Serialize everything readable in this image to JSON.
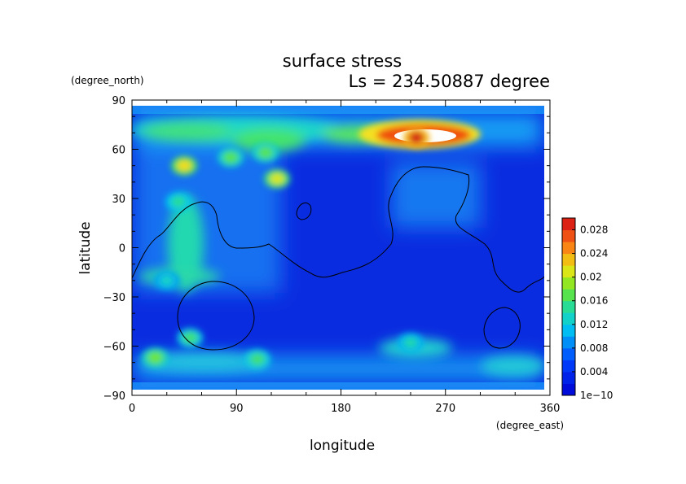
{
  "chart_data": {
    "type": "heatmap",
    "title": "surface stress",
    "subtitle": "Ls = 234.50887 degree",
    "xlabel": "longitude",
    "ylabel": "latitude",
    "x_units": "(degree_east)",
    "y_units": "(degree_north)",
    "xlim": [
      0,
      360
    ],
    "ylim": [
      -90,
      90
    ],
    "x_ticks": [
      "0",
      "90",
      "180",
      "270",
      "360"
    ],
    "y_ticks": [
      "90",
      "60",
      "30",
      "0",
      "−30",
      "−60",
      "−90"
    ],
    "x_tick_values": [
      0,
      90,
      180,
      270,
      360
    ],
    "y_tick_values": [
      90,
      60,
      30,
      0,
      -30,
      -60,
      -90
    ],
    "colorbar": {
      "min": 0,
      "max": 0.03,
      "tick_labels": [
        "1e−10",
        "0.004",
        "0.008",
        "0.012",
        "0.016",
        "0.02",
        "0.024",
        "0.028"
      ],
      "tick_values": [
        0,
        0.004,
        0.008,
        0.012,
        0.016,
        0.02,
        0.024,
        0.028
      ]
    },
    "grid": false,
    "hotspots": [
      {
        "lon": 245,
        "lat": 67,
        "value": 0.031
      },
      {
        "lon": 45,
        "lat": 50,
        "value": 0.022
      },
      {
        "lon": 125,
        "lat": 42,
        "value": 0.021
      },
      {
        "lon": 85,
        "lat": 55,
        "value": 0.017
      },
      {
        "lon": 115,
        "lat": 58,
        "value": 0.017
      },
      {
        "lon": 40,
        "lat": 28,
        "value": 0.015
      },
      {
        "lon": 20,
        "lat": -67,
        "value": 0.018
      },
      {
        "lon": 108,
        "lat": -68,
        "value": 0.016
      },
      {
        "lon": 50,
        "lat": -55,
        "value": 0.016
      },
      {
        "lon": 240,
        "lat": -58,
        "value": 0.014
      },
      {
        "lon": 30,
        "lat": -20,
        "value": 0.013
      }
    ]
  }
}
